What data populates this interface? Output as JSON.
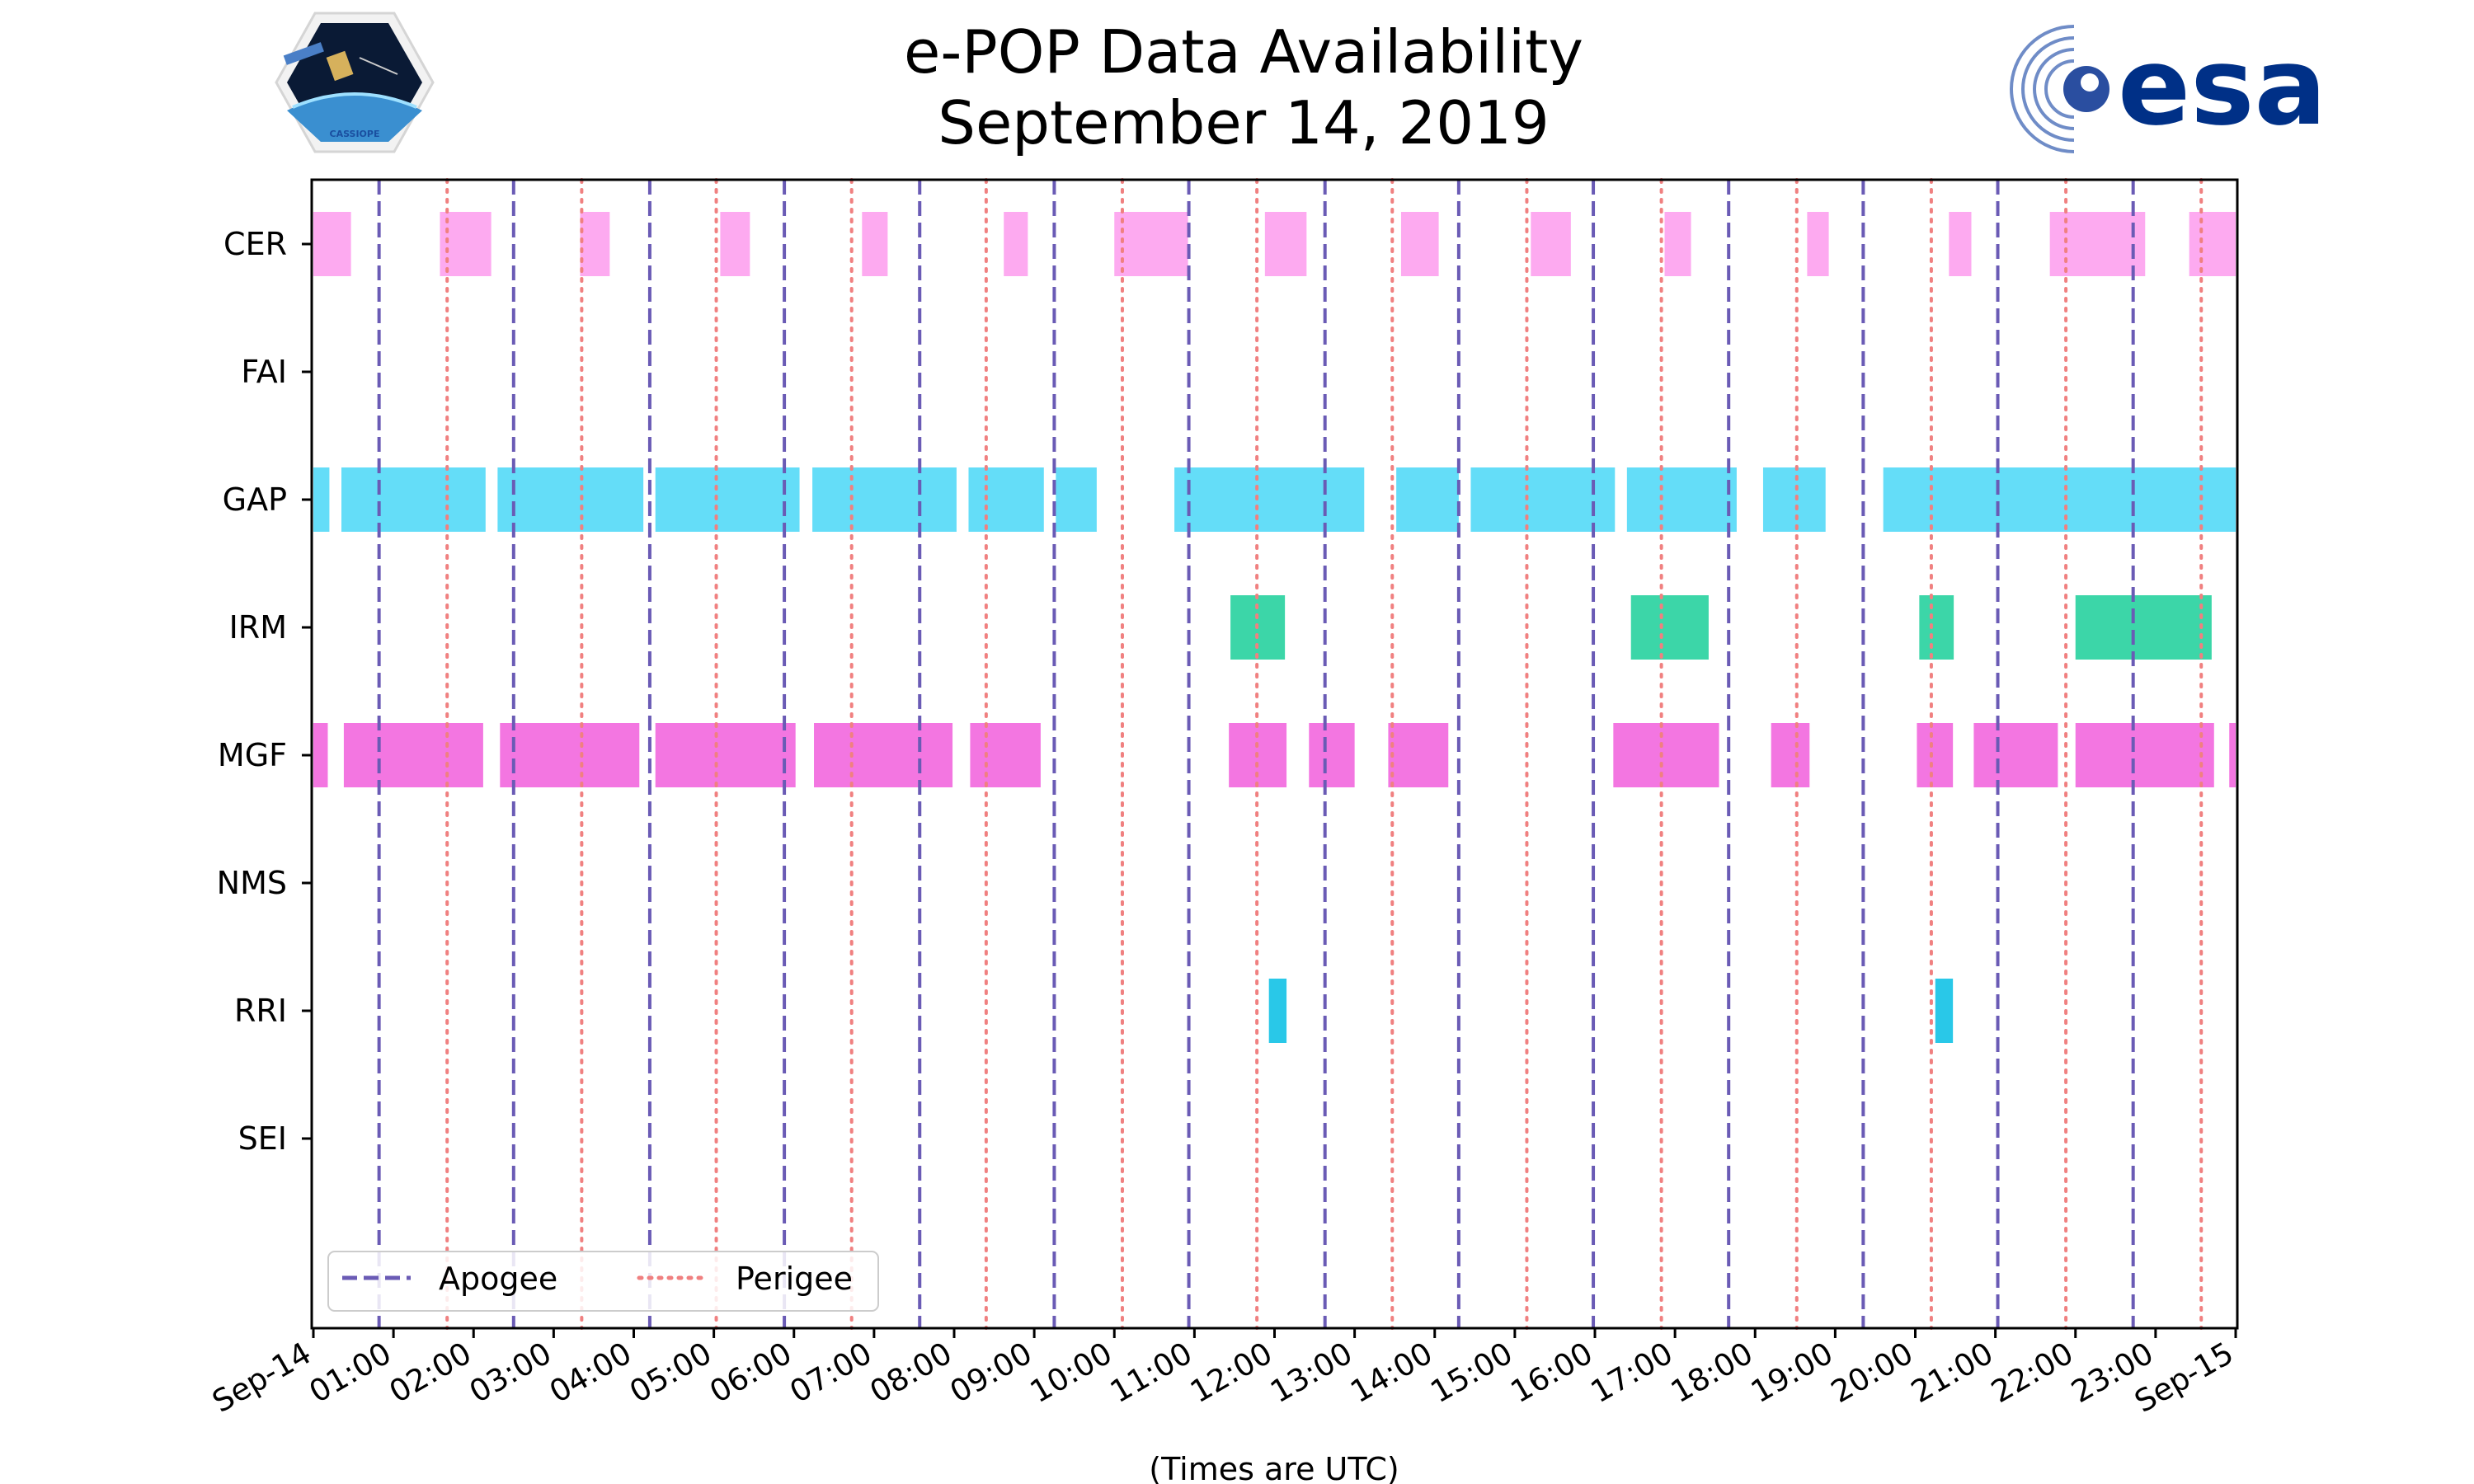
{
  "chart_data": {
    "type": "timeline",
    "title_line1": "e-POP Data Availability",
    "title_line2": "September 14, 2019",
    "xlabel": "(Times are UTC)",
    "x_unit": "hours",
    "xlim": [
      0,
      24
    ],
    "x_tick_labels": [
      "Sep-14",
      "01:00",
      "02:00",
      "03:00",
      "04:00",
      "05:00",
      "06:00",
      "07:00",
      "08:00",
      "09:00",
      "10:00",
      "11:00",
      "12:00",
      "13:00",
      "14:00",
      "15:00",
      "16:00",
      "17:00",
      "18:00",
      "19:00",
      "20:00",
      "21:00",
      "22:00",
      "23:00",
      "Sep-15"
    ],
    "instruments": [
      {
        "name": "CER",
        "color": "#fdaaf0",
        "intervals": [
          [
            0,
            0.47
          ],
          [
            1.58,
            2.22
          ],
          [
            3.33,
            3.7
          ],
          [
            5.08,
            5.45
          ],
          [
            6.85,
            7.17
          ],
          [
            8.62,
            8.92
          ],
          [
            10.0,
            10.92
          ],
          [
            11.88,
            12.4
          ],
          [
            13.58,
            14.05
          ],
          [
            15.2,
            15.7
          ],
          [
            16.87,
            17.2
          ],
          [
            18.65,
            18.92
          ],
          [
            20.42,
            20.7
          ],
          [
            21.68,
            22.87
          ],
          [
            23.42,
            24.0
          ]
        ]
      },
      {
        "name": "FAI",
        "color": "#cccccc",
        "intervals": []
      },
      {
        "name": "GAP",
        "color": "#64ddf8",
        "intervals": [
          [
            0,
            0.2
          ],
          [
            0.35,
            2.15
          ],
          [
            2.3,
            4.12
          ],
          [
            4.27,
            6.07
          ],
          [
            6.23,
            8.03
          ],
          [
            8.18,
            9.12
          ],
          [
            9.27,
            9.78
          ],
          [
            10.75,
            13.12
          ],
          [
            13.52,
            14.3
          ],
          [
            14.45,
            16.25
          ],
          [
            16.4,
            17.77
          ],
          [
            18.1,
            18.88
          ],
          [
            19.6,
            24.0
          ]
        ]
      },
      {
        "name": "IRM",
        "color": "#3cd6a8",
        "intervals": [
          [
            11.45,
            12.13
          ],
          [
            16.45,
            17.42
          ],
          [
            20.05,
            20.48
          ],
          [
            22.0,
            23.7
          ]
        ]
      },
      {
        "name": "MGF",
        "color": "#f376e1",
        "intervals": [
          [
            0,
            0.18
          ],
          [
            0.38,
            2.12
          ],
          [
            2.33,
            4.07
          ],
          [
            4.27,
            6.02
          ],
          [
            6.25,
            7.98
          ],
          [
            8.2,
            9.08
          ],
          [
            11.43,
            12.15
          ],
          [
            12.43,
            13.0
          ],
          [
            13.42,
            14.17
          ],
          [
            16.23,
            17.55
          ],
          [
            18.2,
            18.68
          ],
          [
            20.02,
            20.47
          ],
          [
            20.73,
            21.78
          ],
          [
            22.0,
            23.73
          ],
          [
            23.92,
            24.0
          ]
        ]
      },
      {
        "name": "NMS",
        "color": "#cccccc",
        "intervals": []
      },
      {
        "name": "RRI",
        "color": "#29c8e8",
        "intervals": [
          [
            11.93,
            12.15
          ],
          [
            20.25,
            20.47
          ]
        ]
      },
      {
        "name": "SEI",
        "color": "#cccccc",
        "intervals": []
      }
    ],
    "apogee": {
      "label": "Apogee",
      "color": "#6a5bb5",
      "style": "dashed",
      "times": [
        0.82,
        2.5,
        4.2,
        5.88,
        7.57,
        9.25,
        10.93,
        12.63,
        14.3,
        15.98,
        17.67,
        19.35,
        21.03,
        22.72
      ]
    },
    "perigee": {
      "label": "Perigee",
      "color": "#f08080",
      "style": "dotted",
      "times": [
        1.67,
        3.35,
        5.03,
        6.72,
        8.4,
        10.1,
        11.78,
        13.47,
        15.15,
        16.83,
        18.52,
        20.2,
        21.88,
        23.57
      ]
    },
    "legend_location": "lower-left",
    "grid": false
  },
  "logos": {
    "mission": {
      "text": "CASSIOPE",
      "icon": "satellite-icon"
    },
    "agency": {
      "text": "esa",
      "color": "#003087"
    }
  }
}
